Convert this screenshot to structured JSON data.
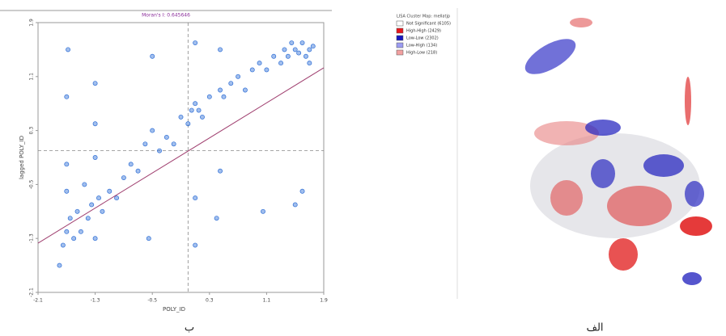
{
  "chart_data": {
    "type": "scatter",
    "title": "Moran's I: 0.645646",
    "x_label": "POLY_ID",
    "y_label": "lagged POLY_ID",
    "xlim": [
      -2.1,
      1.9
    ],
    "ylim": [
      -2.1,
      1.9
    ],
    "xticks": [
      -2.1,
      -1.3,
      -0.5,
      0.3,
      1.1,
      1.9
    ],
    "yticks": [
      -2.1,
      -1.3,
      -0.5,
      0.3,
      1.1,
      1.9
    ],
    "color": "#2f6fd6",
    "x": [
      -1.8,
      -1.75,
      -1.7,
      -1.7,
      -1.7,
      -1.68,
      -1.65,
      -1.6,
      -1.55,
      -1.5,
      -1.45,
      -1.4,
      -1.35,
      -1.3,
      -1.3,
      -1.3,
      -1.25,
      -1.2,
      -1.1,
      -1.0,
      -0.9,
      -0.8,
      -0.7,
      -0.6,
      -0.55,
      -0.5,
      -0.4,
      -0.3,
      -0.2,
      -0.1,
      0.0,
      0.05,
      0.1,
      0.1,
      0.1,
      0.15,
      0.2,
      0.3,
      0.4,
      0.45,
      0.45,
      0.5,
      0.6,
      0.7,
      0.8,
      0.9,
      1.0,
      1.05,
      1.1,
      1.2,
      1.3,
      1.35,
      1.4,
      1.45,
      1.5,
      1.55,
      1.6,
      1.65,
      1.7,
      1.7,
      1.75,
      1.5,
      1.6,
      -1.7,
      -1.3,
      0.45,
      -0.5,
      0.1
    ],
    "y": [
      -1.7,
      -1.4,
      -1.2,
      -0.6,
      0.8,
      1.5,
      -1.0,
      -1.3,
      -0.9,
      -1.2,
      -0.5,
      -1.0,
      -0.8,
      -1.3,
      0.4,
      1.0,
      -0.7,
      -0.9,
      -0.6,
      -0.7,
      -0.4,
      -0.2,
      -0.3,
      0.1,
      -1.3,
      0.3,
      0.0,
      0.2,
      0.1,
      0.5,
      0.4,
      0.6,
      -1.4,
      0.7,
      1.6,
      0.6,
      0.5,
      0.8,
      -1.0,
      0.9,
      1.5,
      0.8,
      1.0,
      1.1,
      0.9,
      1.2,
      1.3,
      -0.9,
      1.2,
      1.4,
      1.3,
      1.5,
      1.4,
      1.6,
      1.5,
      1.45,
      1.6,
      1.4,
      1.5,
      1.3,
      1.55,
      -0.8,
      -0.6,
      -0.2,
      -0.1,
      -0.3,
      1.4,
      -0.7
    ],
    "fit_line": {
      "color": "#a04070",
      "x": [
        -2.1,
        1.9
      ],
      "y": [
        -1.37,
        1.23
      ]
    },
    "ref_lines": {
      "x": 0,
      "y": 0
    },
    "caption": "ب"
  },
  "map": {
    "legend_title": "LISA Cluster Map: mellatjp",
    "legend": [
      {
        "label": "Not Significant (6105)",
        "color": "#ffffff"
      },
      {
        "label": "High-High (2429)",
        "color": "#e8171c"
      },
      {
        "label": "Low-Low (2302)",
        "color": "#1717c0"
      },
      {
        "label": "Low-High (134)",
        "color": "#9c9cf2"
      },
      {
        "label": "High-Low (218)",
        "color": "#f2a0a0"
      }
    ],
    "caption": "الف"
  }
}
